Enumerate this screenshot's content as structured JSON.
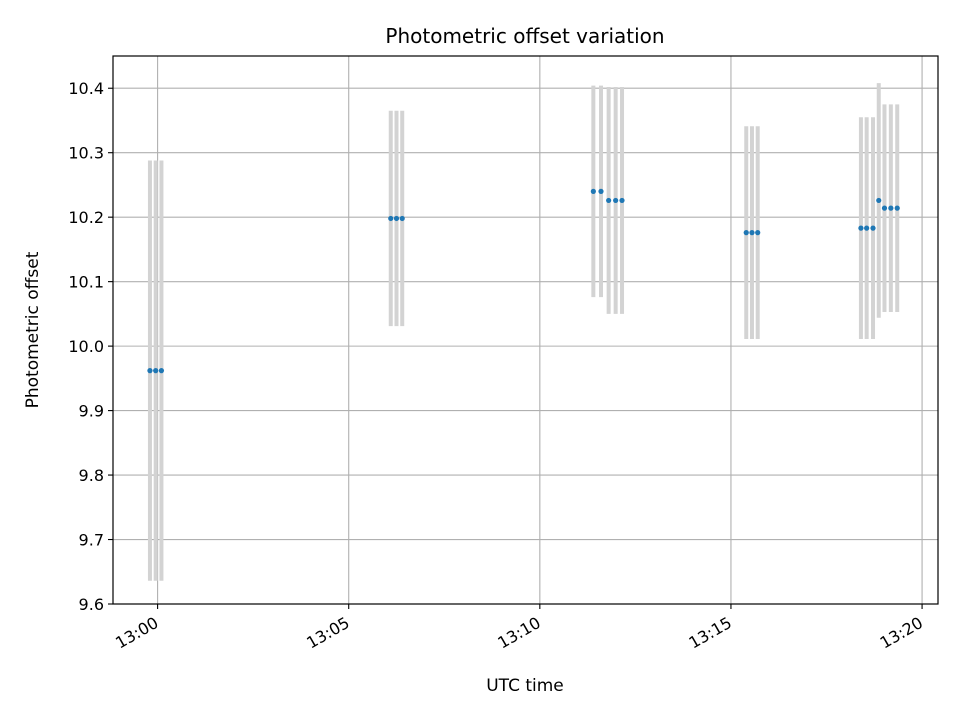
{
  "chart_data": {
    "type": "scatter",
    "title": "Photometric offset variation",
    "xlabel": "UTC time",
    "ylabel": "Photometric offset",
    "x_axis_type": "time",
    "xlim": [
      "12:58:50",
      "13:20:25"
    ],
    "ylim": [
      9.6,
      10.45
    ],
    "grid": true,
    "x_ticks": [
      "13:00",
      "13:05",
      "13:10",
      "13:15",
      "13:20"
    ],
    "y_ticks": [
      9.6,
      9.7,
      9.8,
      9.9,
      10.0,
      10.1,
      10.2,
      10.3,
      10.4
    ],
    "colors": {
      "points": "#1f77b4",
      "error_bars": "#d3d3d3",
      "grid": "#b0b0b0"
    },
    "points": [
      {
        "x": "12:59:48",
        "y": 9.962,
        "err": 0.326
      },
      {
        "x": "12:59:57",
        "y": 9.962,
        "err": 0.326
      },
      {
        "x": "13:00:06",
        "y": 9.962,
        "err": 0.326
      },
      {
        "x": "13:06:06",
        "y": 10.198,
        "err": 0.167
      },
      {
        "x": "13:06:15",
        "y": 10.198,
        "err": 0.167
      },
      {
        "x": "13:06:24",
        "y": 10.198,
        "err": 0.167
      },
      {
        "x": "13:11:24",
        "y": 10.24,
        "err": 0.164
      },
      {
        "x": "13:11:36",
        "y": 10.24,
        "err": 0.164
      },
      {
        "x": "13:11:48",
        "y": 10.226,
        "err": 0.176
      },
      {
        "x": "13:11:59",
        "y": 10.226,
        "err": 0.176
      },
      {
        "x": "13:12:09",
        "y": 10.226,
        "err": 0.176
      },
      {
        "x": "13:15:24",
        "y": 10.176,
        "err": 0.165
      },
      {
        "x": "13:15:33",
        "y": 10.176,
        "err": 0.165
      },
      {
        "x": "13:15:42",
        "y": 10.176,
        "err": 0.165
      },
      {
        "x": "13:18:24",
        "y": 10.183,
        "err": 0.172
      },
      {
        "x": "13:18:33",
        "y": 10.183,
        "err": 0.172
      },
      {
        "x": "13:18:43",
        "y": 10.183,
        "err": 0.172
      },
      {
        "x": "13:18:52",
        "y": 10.226,
        "err": 0.182
      },
      {
        "x": "13:19:01",
        "y": 10.214,
        "err": 0.161
      },
      {
        "x": "13:19:11",
        "y": 10.214,
        "err": 0.161
      },
      {
        "x": "13:19:21",
        "y": 10.214,
        "err": 0.161
      }
    ]
  }
}
